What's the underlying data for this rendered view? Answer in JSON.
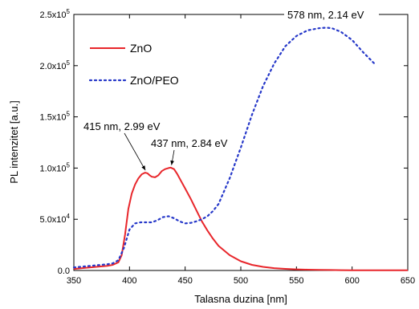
{
  "chart_data": {
    "type": "line",
    "title": "",
    "xlabel": "Talasna duzina [nm]",
    "ylabel": "PL intenzitet [a.u.]",
    "xlim": [
      350,
      650
    ],
    "ylim": [
      0,
      250000
    ],
    "xticks": [
      350,
      400,
      450,
      500,
      550,
      600,
      650
    ],
    "xtick_labels": [
      "350",
      "400",
      "450",
      "500",
      "550",
      "600",
      "650"
    ],
    "yticks": [
      0,
      50000,
      100000,
      150000,
      200000,
      250000
    ],
    "ytick_labels": [
      {
        "base": "0.0",
        "exp": ""
      },
      {
        "base": "5.0x10",
        "exp": "4"
      },
      {
        "base": "1.0x10",
        "exp": "5"
      },
      {
        "base": "1.5x10",
        "exp": "5"
      },
      {
        "base": "2.0x10",
        "exp": "5"
      },
      {
        "base": "2.5x10",
        "exp": "5"
      }
    ],
    "grid": false,
    "legend_position": "top-left",
    "series": [
      {
        "name": "ZnO",
        "color": "#e8262b",
        "style": "solid",
        "x": [
          350,
          360,
          370,
          380,
          385,
          390,
          393,
          396,
          399,
          402,
          405,
          408,
          411,
          414,
          416,
          418,
          420,
          423,
          426,
          429,
          432,
          435,
          437,
          440,
          443,
          446,
          450,
          455,
          460,
          465,
          470,
          475,
          480,
          490,
          500,
          510,
          520,
          530,
          540,
          550,
          560,
          570,
          580,
          590,
          600,
          610,
          620,
          630,
          640,
          650
        ],
        "y": [
          1500,
          2500,
          3500,
          4500,
          5500,
          8000,
          15000,
          35000,
          60000,
          75000,
          84000,
          90000,
          94000,
          95500,
          95000,
          93000,
          91500,
          91000,
          93000,
          97000,
          99000,
          100000,
          100500,
          99000,
          94000,
          88000,
          80000,
          70000,
          59000,
          48000,
          39000,
          31000,
          24000,
          15000,
          9000,
          5500,
          3500,
          2300,
          1600,
          1100,
          800,
          600,
          450,
          350,
          270,
          220,
          180,
          150,
          130,
          120
        ]
      },
      {
        "name": "ZnO/PEO",
        "color": "#2638c9",
        "style": "dotted",
        "x": [
          350,
          360,
          370,
          380,
          385,
          390,
          395,
          400,
          405,
          410,
          415,
          420,
          425,
          430,
          435,
          440,
          445,
          450,
          455,
          460,
          465,
          470,
          475,
          480,
          490,
          500,
          510,
          520,
          530,
          540,
          550,
          560,
          570,
          575,
          578,
          582,
          590,
          600,
          610,
          620
        ],
        "y": [
          3000,
          4000,
          5000,
          6000,
          7000,
          10000,
          22000,
          40000,
          46000,
          47000,
          47000,
          47000,
          49000,
          52000,
          53000,
          51000,
          48000,
          46000,
          46500,
          48000,
          50000,
          53000,
          58000,
          65000,
          90000,
          120000,
          152000,
          180000,
          202000,
          219000,
          229000,
          234500,
          236500,
          237000,
          237000,
          236500,
          233000,
          225000,
          213000,
          202000
        ]
      }
    ],
    "annotations": [
      {
        "text": "415 nm, 2.99 eV",
        "x": 415,
        "y": 95500
      },
      {
        "text": "437 nm, 2.84 eV",
        "x": 437,
        "y": 100500
      },
      {
        "text": "578 nm, 2.14 eV",
        "x": 578,
        "y": 237000
      }
    ]
  }
}
